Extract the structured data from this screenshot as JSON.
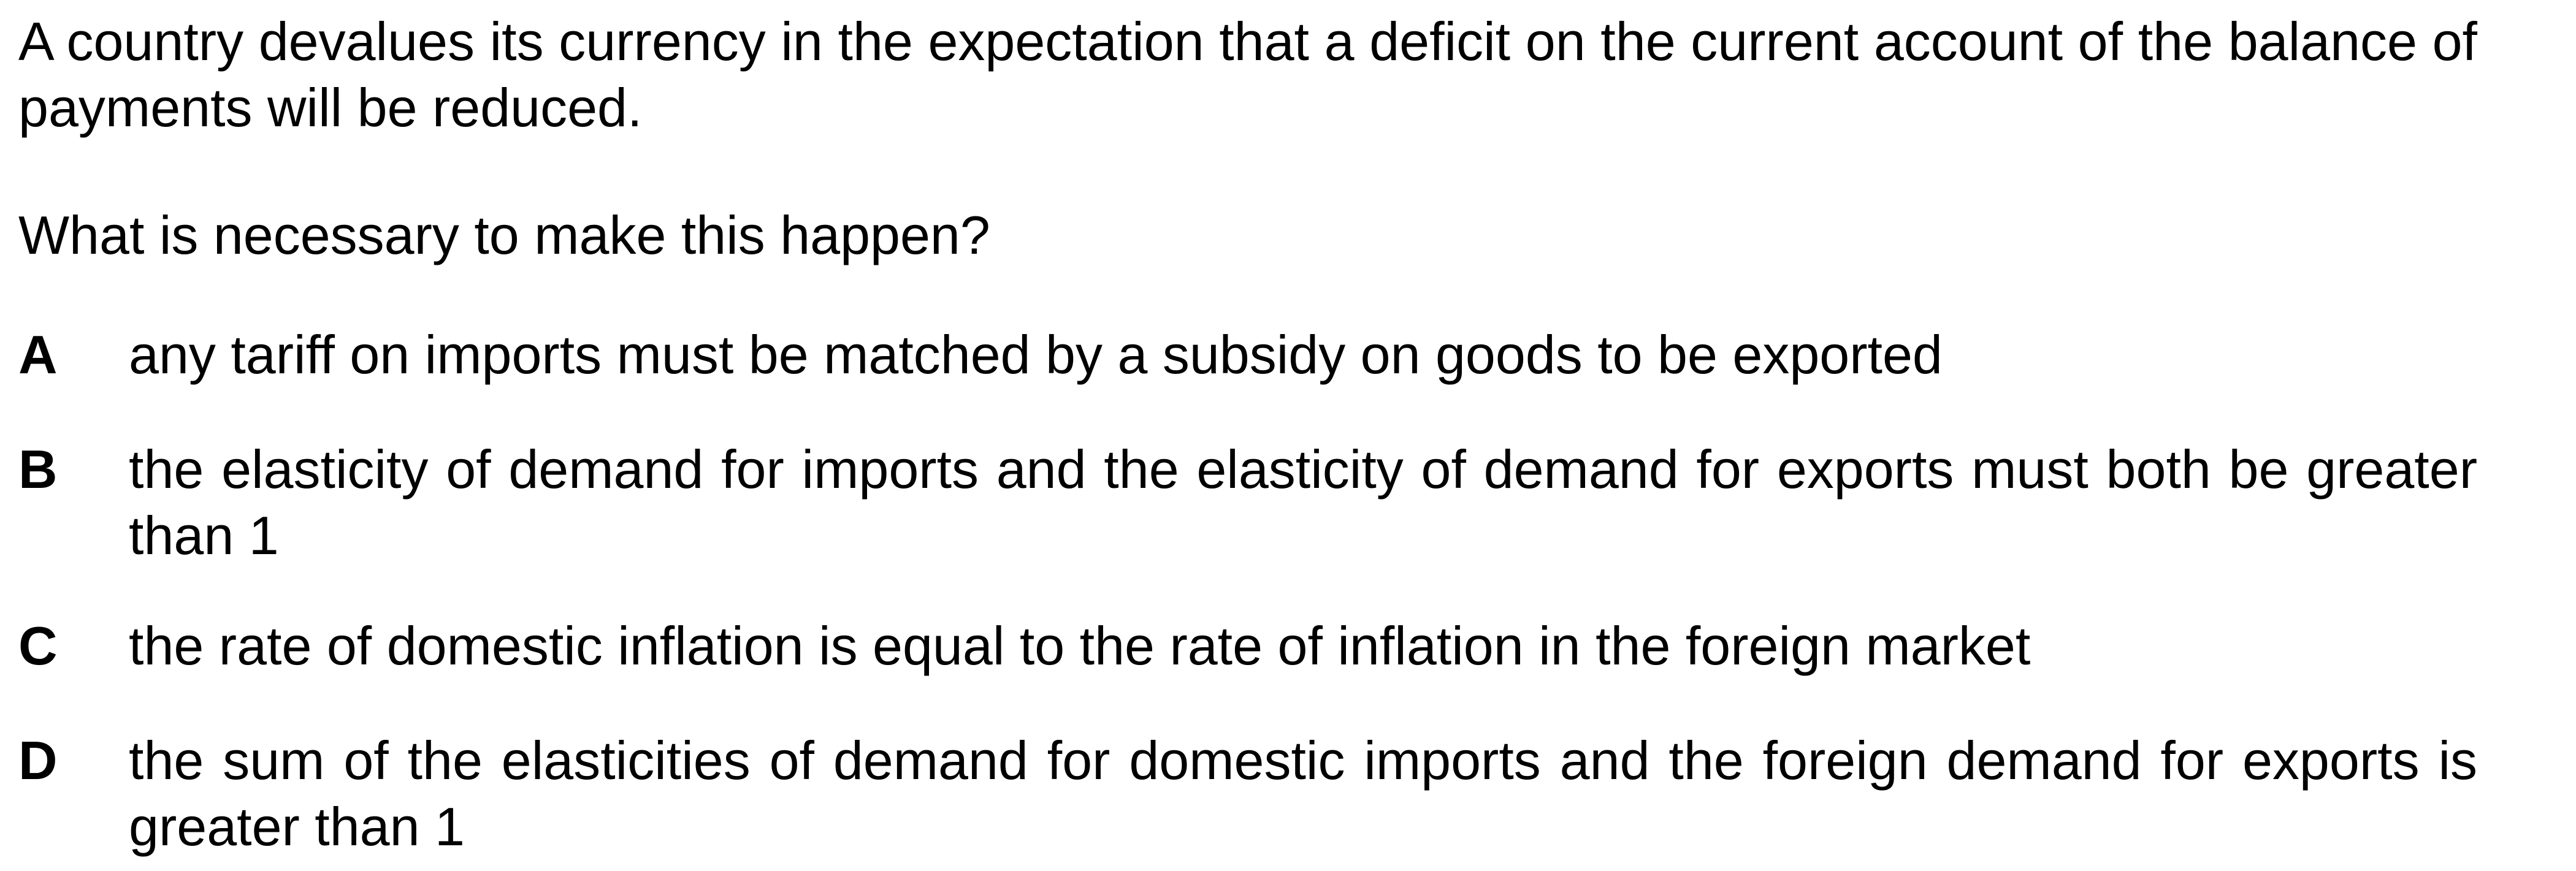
{
  "question": {
    "stem": "A country devalues its currency in the expectation that a deficit on the current account of the balance of payments will be reduced.",
    "prompt": "What is necessary to make this happen?",
    "options": [
      {
        "letter": "A",
        "text": "any tariff on imports must be matched by a subsidy on goods to be exported"
      },
      {
        "letter": "B",
        "text": "the elasticity of demand for imports and the elasticity of demand for exports must both be greater than 1"
      },
      {
        "letter": "C",
        "text": "the rate of domestic inflation is equal to the rate of inflation in the foreign market"
      },
      {
        "letter": "D",
        "text": "the sum of the elasticities of demand for domestic imports and the foreign demand for exports is greater than 1"
      }
    ]
  }
}
